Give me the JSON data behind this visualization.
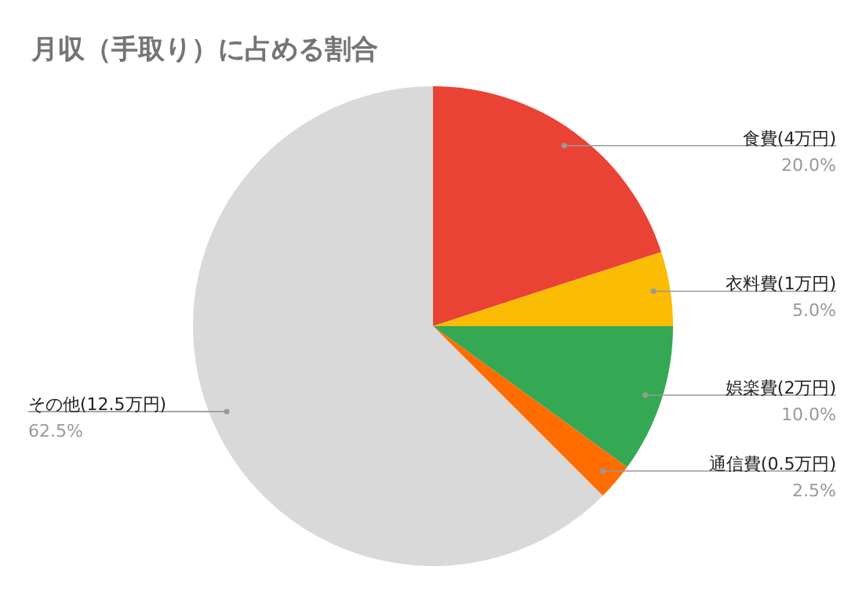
{
  "chart_data": {
    "type": "pie",
    "title": "月収（手取り）に占める割合",
    "categories": [
      "食費(4万円)",
      "衣料費(1万円)",
      "娯楽費(2万円)",
      "通信費(0.5万円)",
      "その他(12.5万円)"
    ],
    "values": [
      20,
      5,
      10,
      2.5,
      62.5
    ],
    "value_labels": [
      "20.0%",
      "5.0%",
      "10.0%",
      "2.5%",
      "62.5%"
    ],
    "colors": [
      "#ea4335",
      "#fbbc04",
      "#34a853",
      "#ff6d01",
      "#d9d9d9"
    ]
  }
}
